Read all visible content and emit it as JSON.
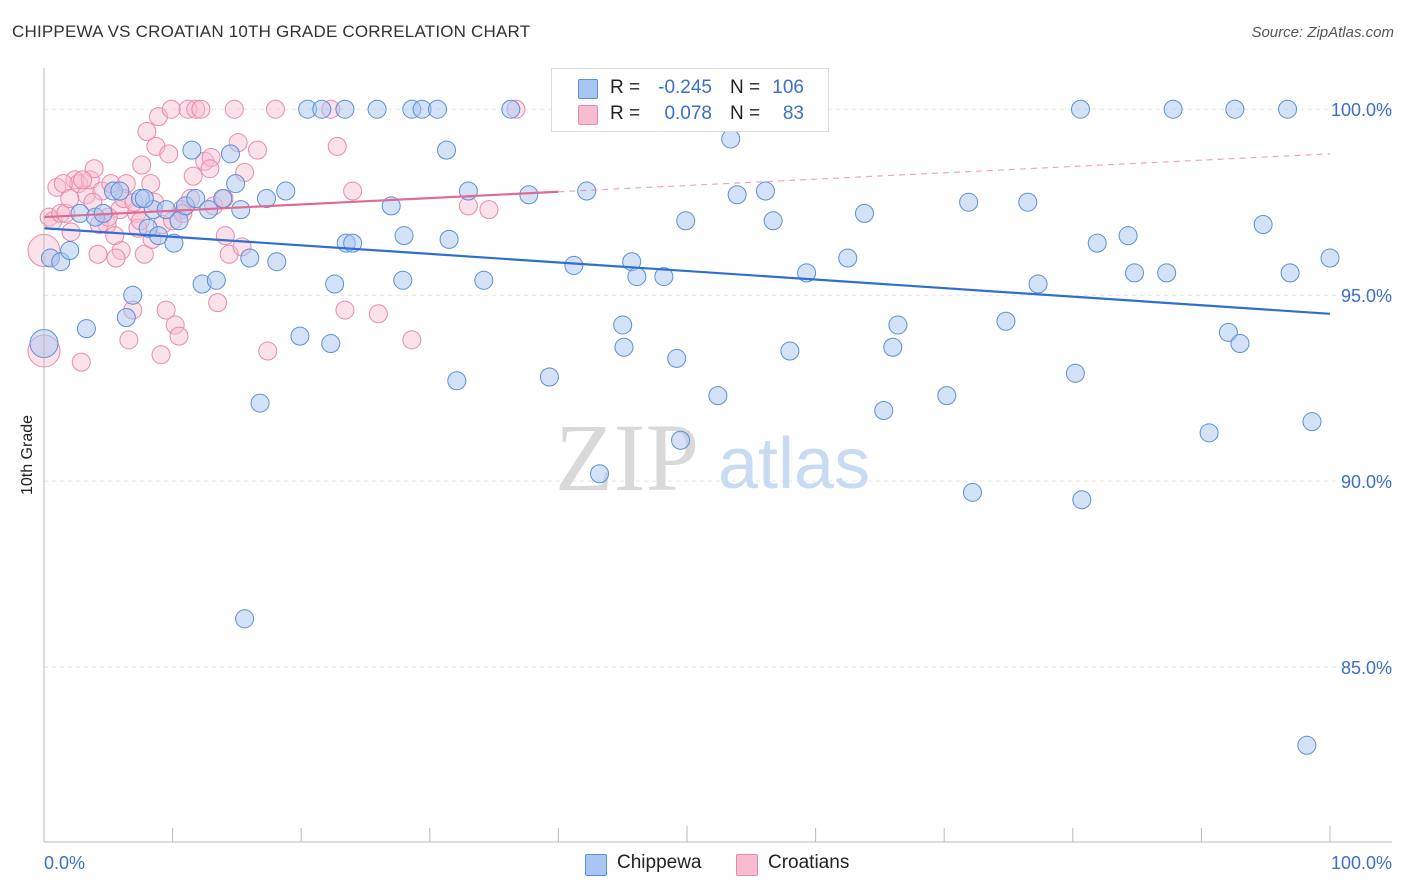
{
  "title": "CHIPPEWA VS CROATIAN 10TH GRADE CORRELATION CHART",
  "source": "Source: ZipAtlas.com",
  "watermark": {
    "zip": "ZIP",
    "atlas": "atlas"
  },
  "legend": {
    "rows": [
      {
        "r_label": "R =",
        "r_value": "-0.245",
        "n_label": "N =",
        "n_value": "106",
        "color": "#a9c6f2"
      },
      {
        "r_label": "R =",
        "r_value": "0.078",
        "n_label": "N =",
        "n_value": "83",
        "color": "#f5b3c8"
      }
    ]
  },
  "bottom_legend": {
    "chippewa": "Chippewa",
    "croatians": "Croatians"
  },
  "chart_data": {
    "type": "scatter",
    "title": "CHIPPEWA VS CROATIAN 10TH GRADE CORRELATION CHART",
    "xlabel": "",
    "ylabel": "10th Grade",
    "xlim": [
      0,
      100
    ],
    "ylim": [
      80.3,
      101.0
    ],
    "x_tick_labels": [
      "0.0%",
      "100.0%"
    ],
    "y_ticks": [
      85.0,
      90.0,
      95.0,
      100.0
    ],
    "y_tick_labels": [
      "85.0%",
      "90.0%",
      "95.0%",
      "100.0%"
    ],
    "grid": true,
    "legend_position": "top-center",
    "colors": {
      "chippewa_fill": "#a9c6f2",
      "chippewa_stroke": "#5b8fd6",
      "chippewa_line": "#2f6fd1",
      "croatians_fill": "#f7bcd0",
      "croatians_stroke": "#e88aab",
      "croatians_line": "#e06a94",
      "tick_label": "#3b6fc9",
      "grid": "#e3e3e3"
    },
    "series": [
      {
        "name": "Chippewa",
        "trend": {
          "x": [
            0,
            100
          ],
          "y": [
            96.8,
            94.5
          ],
          "dashed_from": null
        },
        "points": [
          [
            0,
            93.7
          ],
          [
            0.5,
            96.0
          ],
          [
            1.3,
            95.9
          ],
          [
            2.0,
            96.2
          ],
          [
            2.8,
            97.2
          ],
          [
            3.3,
            94.1
          ],
          [
            4.0,
            97.1
          ],
          [
            4.6,
            97.2
          ],
          [
            5.4,
            97.8
          ],
          [
            5.9,
            97.8
          ],
          [
            6.4,
            94.4
          ],
          [
            6.9,
            95.0
          ],
          [
            7.5,
            97.6
          ],
          [
            8.1,
            96.8
          ],
          [
            8.5,
            97.3
          ],
          [
            8.9,
            96.6
          ],
          [
            9.5,
            97.3
          ],
          [
            10.1,
            96.4
          ],
          [
            10.5,
            97.0
          ],
          [
            11.0,
            97.4
          ],
          [
            11.8,
            97.6
          ],
          [
            12.3,
            95.3
          ],
          [
            12.8,
            97.3
          ],
          [
            13.4,
            95.4
          ],
          [
            13.9,
            97.6
          ],
          [
            14.5,
            98.8
          ],
          [
            14.9,
            98.0
          ],
          [
            15.3,
            97.3
          ],
          [
            15.6,
            86.3
          ],
          [
            16.0,
            96.0
          ],
          [
            16.8,
            92.1
          ],
          [
            17.3,
            97.6
          ],
          [
            18.1,
            95.9
          ],
          [
            18.8,
            97.8
          ],
          [
            19.9,
            93.9
          ],
          [
            20.5,
            100.0
          ],
          [
            21.6,
            100.0
          ],
          [
            22.3,
            93.7
          ],
          [
            22.6,
            95.3
          ],
          [
            23.4,
            100.0
          ],
          [
            23.5,
            96.4
          ],
          [
            24.0,
            96.4
          ],
          [
            25.9,
            100.0
          ],
          [
            27.0,
            97.4
          ],
          [
            27.9,
            95.4
          ],
          [
            28.0,
            96.6
          ],
          [
            28.6,
            100.0
          ],
          [
            29.4,
            100.0
          ],
          [
            30.6,
            100.0
          ],
          [
            31.3,
            98.9
          ],
          [
            31.5,
            96.5
          ],
          [
            32.1,
            92.7
          ],
          [
            33.0,
            97.8
          ],
          [
            34.2,
            95.4
          ],
          [
            36.3,
            100.0
          ],
          [
            37.7,
            97.7
          ],
          [
            39.3,
            92.8
          ],
          [
            41.2,
            95.8
          ],
          [
            42.2,
            97.8
          ],
          [
            43.2,
            90.2
          ],
          [
            45.0,
            94.2
          ],
          [
            45.1,
            93.6
          ],
          [
            45.7,
            95.9
          ],
          [
            46.1,
            95.5
          ],
          [
            48.2,
            95.5
          ],
          [
            49.2,
            93.3
          ],
          [
            49.5,
            91.1
          ],
          [
            49.9,
            97.0
          ],
          [
            52.4,
            92.3
          ],
          [
            53.9,
            97.7
          ],
          [
            56.7,
            97.0
          ],
          [
            58.0,
            93.5
          ],
          [
            59.3,
            95.6
          ],
          [
            62.5,
            96.0
          ],
          [
            63.8,
            97.2
          ],
          [
            65.3,
            91.9
          ],
          [
            66.0,
            93.6
          ],
          [
            66.4,
            94.2
          ],
          [
            70.2,
            92.3
          ],
          [
            71.9,
            97.5
          ],
          [
            72.2,
            89.7
          ],
          [
            74.8,
            94.3
          ],
          [
            76.5,
            97.5
          ],
          [
            77.3,
            95.3
          ],
          [
            80.2,
            92.9
          ],
          [
            80.6,
            100.0
          ],
          [
            80.7,
            89.5
          ],
          [
            81.9,
            96.4
          ],
          [
            84.3,
            96.6
          ],
          [
            84.8,
            95.6
          ],
          [
            87.3,
            95.6
          ],
          [
            87.8,
            100.0
          ],
          [
            90.6,
            91.3
          ],
          [
            92.1,
            94.0
          ],
          [
            92.6,
            100.0
          ],
          [
            93.0,
            93.7
          ],
          [
            94.8,
            96.9
          ],
          [
            96.7,
            100.0
          ],
          [
            96.9,
            95.6
          ],
          [
            98.2,
            82.9
          ],
          [
            98.6,
            91.6
          ],
          [
            100.0,
            96.0
          ],
          [
            53.4,
            99.2
          ],
          [
            56.1,
            97.8
          ],
          [
            11.5,
            98.9
          ],
          [
            7.8,
            97.6
          ]
        ]
      },
      {
        "name": "Croatians",
        "trend": {
          "x": [
            0,
            100
          ],
          "y": [
            97.1,
            98.8
          ],
          "dashed_from": 40
        },
        "points": [
          [
            0,
            93.5
          ],
          [
            0,
            96.2
          ],
          [
            0.4,
            97.1
          ],
          [
            0.7,
            97.0
          ],
          [
            1.3,
            97.2
          ],
          [
            1.7,
            97.2
          ],
          [
            2.1,
            96.7
          ],
          [
            2.4,
            98.1
          ],
          [
            2.7,
            98.0
          ],
          [
            2.9,
            93.2
          ],
          [
            3.3,
            97.7
          ],
          [
            3.6,
            98.1
          ],
          [
            3.9,
            98.4
          ],
          [
            4.2,
            96.1
          ],
          [
            4.5,
            97.8
          ],
          [
            4.9,
            96.9
          ],
          [
            5.2,
            98.0
          ],
          [
            5.5,
            96.6
          ],
          [
            5.9,
            97.3
          ],
          [
            6.0,
            96.2
          ],
          [
            6.4,
            98.0
          ],
          [
            6.6,
            93.8
          ],
          [
            6.9,
            94.6
          ],
          [
            7.2,
            97.2
          ],
          [
            7.3,
            96.8
          ],
          [
            7.6,
            98.5
          ],
          [
            7.8,
            96.1
          ],
          [
            8.0,
            99.4
          ],
          [
            8.3,
            98.0
          ],
          [
            8.4,
            96.5
          ],
          [
            8.7,
            99.0
          ],
          [
            8.9,
            99.8
          ],
          [
            9.1,
            93.4
          ],
          [
            9.5,
            94.6
          ],
          [
            9.7,
            98.8
          ],
          [
            9.9,
            100.0
          ],
          [
            10.2,
            94.2
          ],
          [
            10.5,
            93.9
          ],
          [
            10.7,
            97.3
          ],
          [
            11.2,
            100.0
          ],
          [
            11.4,
            97.6
          ],
          [
            11.8,
            100.0
          ],
          [
            12.2,
            100.0
          ],
          [
            12.5,
            98.6
          ],
          [
            13.0,
            98.7
          ],
          [
            13.2,
            97.4
          ],
          [
            13.5,
            94.8
          ],
          [
            14.1,
            96.6
          ],
          [
            14.4,
            96.1
          ],
          [
            14.8,
            100.0
          ],
          [
            15.1,
            99.1
          ],
          [
            15.4,
            96.3
          ],
          [
            16.6,
            98.9
          ],
          [
            17.4,
            93.5
          ],
          [
            18.0,
            100.0
          ],
          [
            22.3,
            100.0
          ],
          [
            22.8,
            99.0
          ],
          [
            23.4,
            94.6
          ],
          [
            24.0,
            97.8
          ],
          [
            26.0,
            94.5
          ],
          [
            28.6,
            93.8
          ],
          [
            33.0,
            97.4
          ],
          [
            34.6,
            97.3
          ],
          [
            36.7,
            100.0
          ],
          [
            1.0,
            97.9
          ],
          [
            1.5,
            98.0
          ],
          [
            2.0,
            97.6
          ],
          [
            3.0,
            98.1
          ],
          [
            3.8,
            97.5
          ],
          [
            4.3,
            96.9
          ],
          [
            5.0,
            97.1
          ],
          [
            5.6,
            96.0
          ],
          [
            6.2,
            97.6
          ],
          [
            7.0,
            97.5
          ],
          [
            7.5,
            97.0
          ],
          [
            8.6,
            97.5
          ],
          [
            9.2,
            96.9
          ],
          [
            10.0,
            97.0
          ],
          [
            10.8,
            97.2
          ],
          [
            11.6,
            98.2
          ],
          [
            12.9,
            98.4
          ],
          [
            14.0,
            97.6
          ],
          [
            15.6,
            98.3
          ]
        ]
      }
    ]
  }
}
